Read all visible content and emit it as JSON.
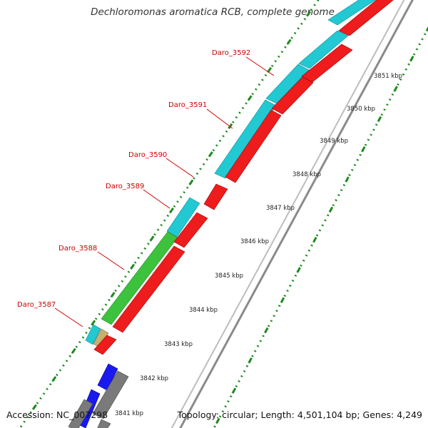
{
  "title": "Dechloromonas aromatica RCB, complete genome",
  "accession": "Accession: NC_007298",
  "topology": "Topology: circular; Length: 4,501,104 bp; Genes: 4,249",
  "colors": {
    "cyan": "#22c8d2",
    "red": "#ee1c1c",
    "green": "#3cc23c",
    "blue": "#1a1aee",
    "gray": "#7a7a7a",
    "tan": "#c6b070",
    "backbone": "#8a8a8a",
    "tick": "#1f8a1f",
    "label": "#cc0000"
  },
  "scale_labels": [
    "3841 kbp",
    "3842 kbp",
    "3843 kbp",
    "3844 kbp",
    "3845 kbp",
    "3846 kbp",
    "3847 kbp",
    "3848 kbp",
    "3849 kbp",
    "3850 kbp",
    "3851 kbp"
  ],
  "gene_labels": [
    "Daro_3587",
    "Daro_3588",
    "Daro_3589",
    "Daro_3590",
    "Daro_3591",
    "Daro_3592"
  ]
}
